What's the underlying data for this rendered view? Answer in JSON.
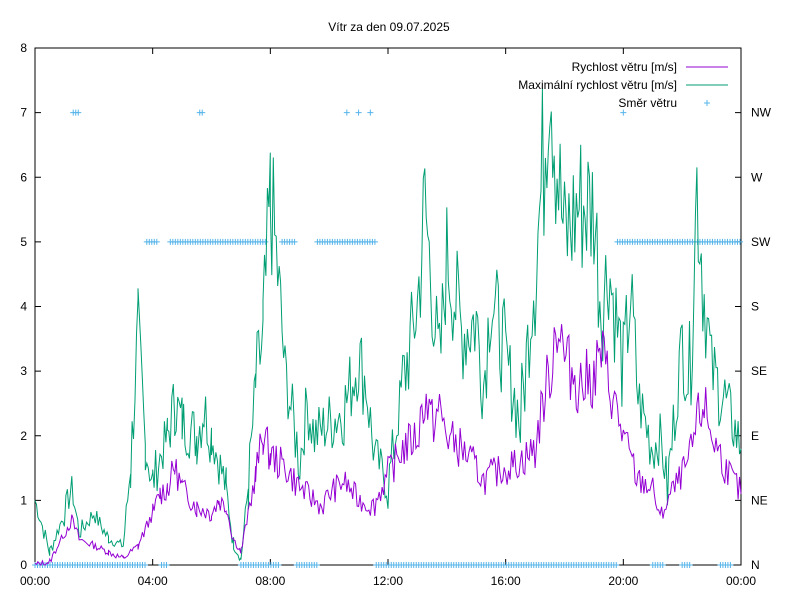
{
  "chart_data": {
    "type": "line",
    "title": "Vítr za den 09.07.2025",
    "x_ticks": [
      "00:00",
      "04:00",
      "08:00",
      "12:00",
      "16:00",
      "20:00",
      "00:00"
    ],
    "x_range_hours": [
      0,
      24
    ],
    "y_left_range": [
      0,
      8
    ],
    "y_left_ticks": [
      "0",
      "1",
      "2",
      "3",
      "4",
      "5",
      "6",
      "7",
      "8"
    ],
    "y_right_ticks": [
      "N",
      "NE",
      "E",
      "SE",
      "S",
      "SW",
      "W",
      "NW"
    ],
    "grid": false,
    "legend_position": "top-right",
    "colors": {
      "speed": "#9400d3",
      "max": "#009e73",
      "dir": "#56b4e9"
    },
    "series": [
      {
        "name": "Rychlost větru [m/s]",
        "hours": [
          0,
          0.5,
          1,
          1.25,
          1.5,
          2,
          2.5,
          3,
          3.5,
          4,
          4.25,
          4.5,
          4.75,
          5,
          5.5,
          6,
          6.25,
          6.5,
          6.75,
          7,
          7.25,
          7.5,
          7.75,
          8,
          8.5,
          9,
          9.5,
          9.75,
          10,
          10.5,
          11,
          11.5,
          12,
          12.5,
          13,
          13.25,
          13.5,
          13.75,
          14,
          14.5,
          15,
          15.25,
          15.5,
          16,
          16.5,
          17,
          17.25,
          17.5,
          17.75,
          18,
          18.5,
          19,
          19.25,
          19.5,
          20,
          20.5,
          21,
          21.25,
          21.5,
          22,
          22.25,
          22.5,
          22.75,
          23,
          23.5,
          24
        ],
        "values": [
          0,
          0.05,
          0.5,
          0.7,
          0.4,
          0.3,
          0.2,
          0.1,
          0.3,
          0.8,
          1.1,
          1.2,
          1.5,
          1.2,
          0.9,
          0.8,
          1.0,
          0.9,
          0.4,
          0.2,
          0.8,
          1.4,
          2.0,
          1.7,
          1.5,
          1.2,
          1.0,
          0.9,
          1.1,
          1.3,
          1.0,
          0.9,
          1.4,
          1.8,
          2.0,
          2.6,
          2.2,
          2.4,
          2.0,
          1.8,
          1.5,
          1.3,
          1.4,
          1.5,
          1.6,
          1.8,
          2.5,
          3.0,
          3.8,
          3.2,
          2.8,
          2.9,
          3.3,
          2.8,
          2.0,
          1.3,
          1.2,
          0.7,
          1.0,
          1.4,
          1.6,
          2.2,
          2.5,
          2.0,
          1.5,
          1.1
        ]
      },
      {
        "name": "Maximální rychlost větru [m/s]",
        "hours": [
          0,
          0.5,
          1,
          1.25,
          1.5,
          2,
          2.5,
          3,
          3.25,
          3.5,
          3.75,
          4,
          4.5,
          4.75,
          5,
          5.5,
          5.75,
          6,
          6.5,
          6.75,
          7,
          7.25,
          7.5,
          7.75,
          8,
          8.25,
          8.5,
          9,
          9.25,
          9.5,
          10,
          10.5,
          11,
          11.25,
          11.5,
          12,
          12.5,
          13,
          13.25,
          13.5,
          13.75,
          14,
          14.5,
          15,
          15.25,
          15.5,
          16,
          16.5,
          17,
          17.25,
          17.5,
          17.75,
          18,
          18.5,
          19,
          19.25,
          19.5,
          20,
          20.25,
          20.5,
          21,
          21.25,
          21.5,
          22,
          22.25,
          22.5,
          22.75,
          23,
          23.5,
          24
        ],
        "values": [
          1.0,
          0.2,
          0.8,
          1.2,
          0.5,
          0.8,
          0.4,
          0.3,
          1.5,
          3.7,
          1.8,
          1.3,
          2.0,
          2.5,
          2.2,
          2.0,
          2.4,
          2.0,
          1.2,
          0.3,
          0.1,
          1.2,
          2.8,
          3.5,
          5.7,
          4.5,
          3.0,
          1.6,
          2.5,
          2.0,
          2.2,
          2.4,
          3.2,
          2.8,
          1.8,
          1.2,
          2.8,
          4.0,
          5.6,
          4.2,
          3.0,
          4.8,
          3.6,
          3.8,
          2.8,
          4.2,
          3.2,
          2.2,
          4.6,
          6.0,
          7.9,
          6.2,
          5.0,
          5.6,
          5.5,
          4.0,
          4.6,
          3.0,
          4.2,
          2.6,
          1.8,
          2.0,
          1.2,
          3.5,
          2.8,
          5.9,
          4.2,
          3.0,
          2.5,
          1.8
        ]
      },
      {
        "name": "Směr větru",
        "points": [
          {
            "from": 0.0,
            "to": 3.8,
            "value": 0
          },
          {
            "from": 1.3,
            "to": 1.5,
            "value": 7
          },
          {
            "from": 3.8,
            "to": 4.2,
            "value": 5
          },
          {
            "from": 4.3,
            "to": 4.5,
            "value": 0
          },
          {
            "from": 4.6,
            "to": 7.9,
            "value": 5
          },
          {
            "from": 5.6,
            "to": 5.7,
            "value": 7
          },
          {
            "from": 7.0,
            "to": 8.3,
            "value": 0
          },
          {
            "from": 8.4,
            "to": 8.9,
            "value": 5
          },
          {
            "from": 8.9,
            "to": 9.6,
            "value": 0
          },
          {
            "from": 9.6,
            "to": 11.6,
            "value": 5
          },
          {
            "from": 10.6,
            "to": 10.6,
            "value": 7
          },
          {
            "from": 11.0,
            "to": 11.0,
            "value": 7
          },
          {
            "from": 11.4,
            "to": 11.4,
            "value": 7
          },
          {
            "from": 11.6,
            "to": 19.8,
            "value": 0
          },
          {
            "from": 19.8,
            "to": 24.0,
            "value": 5
          },
          {
            "from": 20.0,
            "to": 20.0,
            "value": 7
          },
          {
            "from": 21.0,
            "to": 21.4,
            "value": 0
          },
          {
            "from": 22.0,
            "to": 22.3,
            "value": 0
          },
          {
            "from": 23.3,
            "to": 23.7,
            "value": 0
          }
        ]
      }
    ]
  }
}
